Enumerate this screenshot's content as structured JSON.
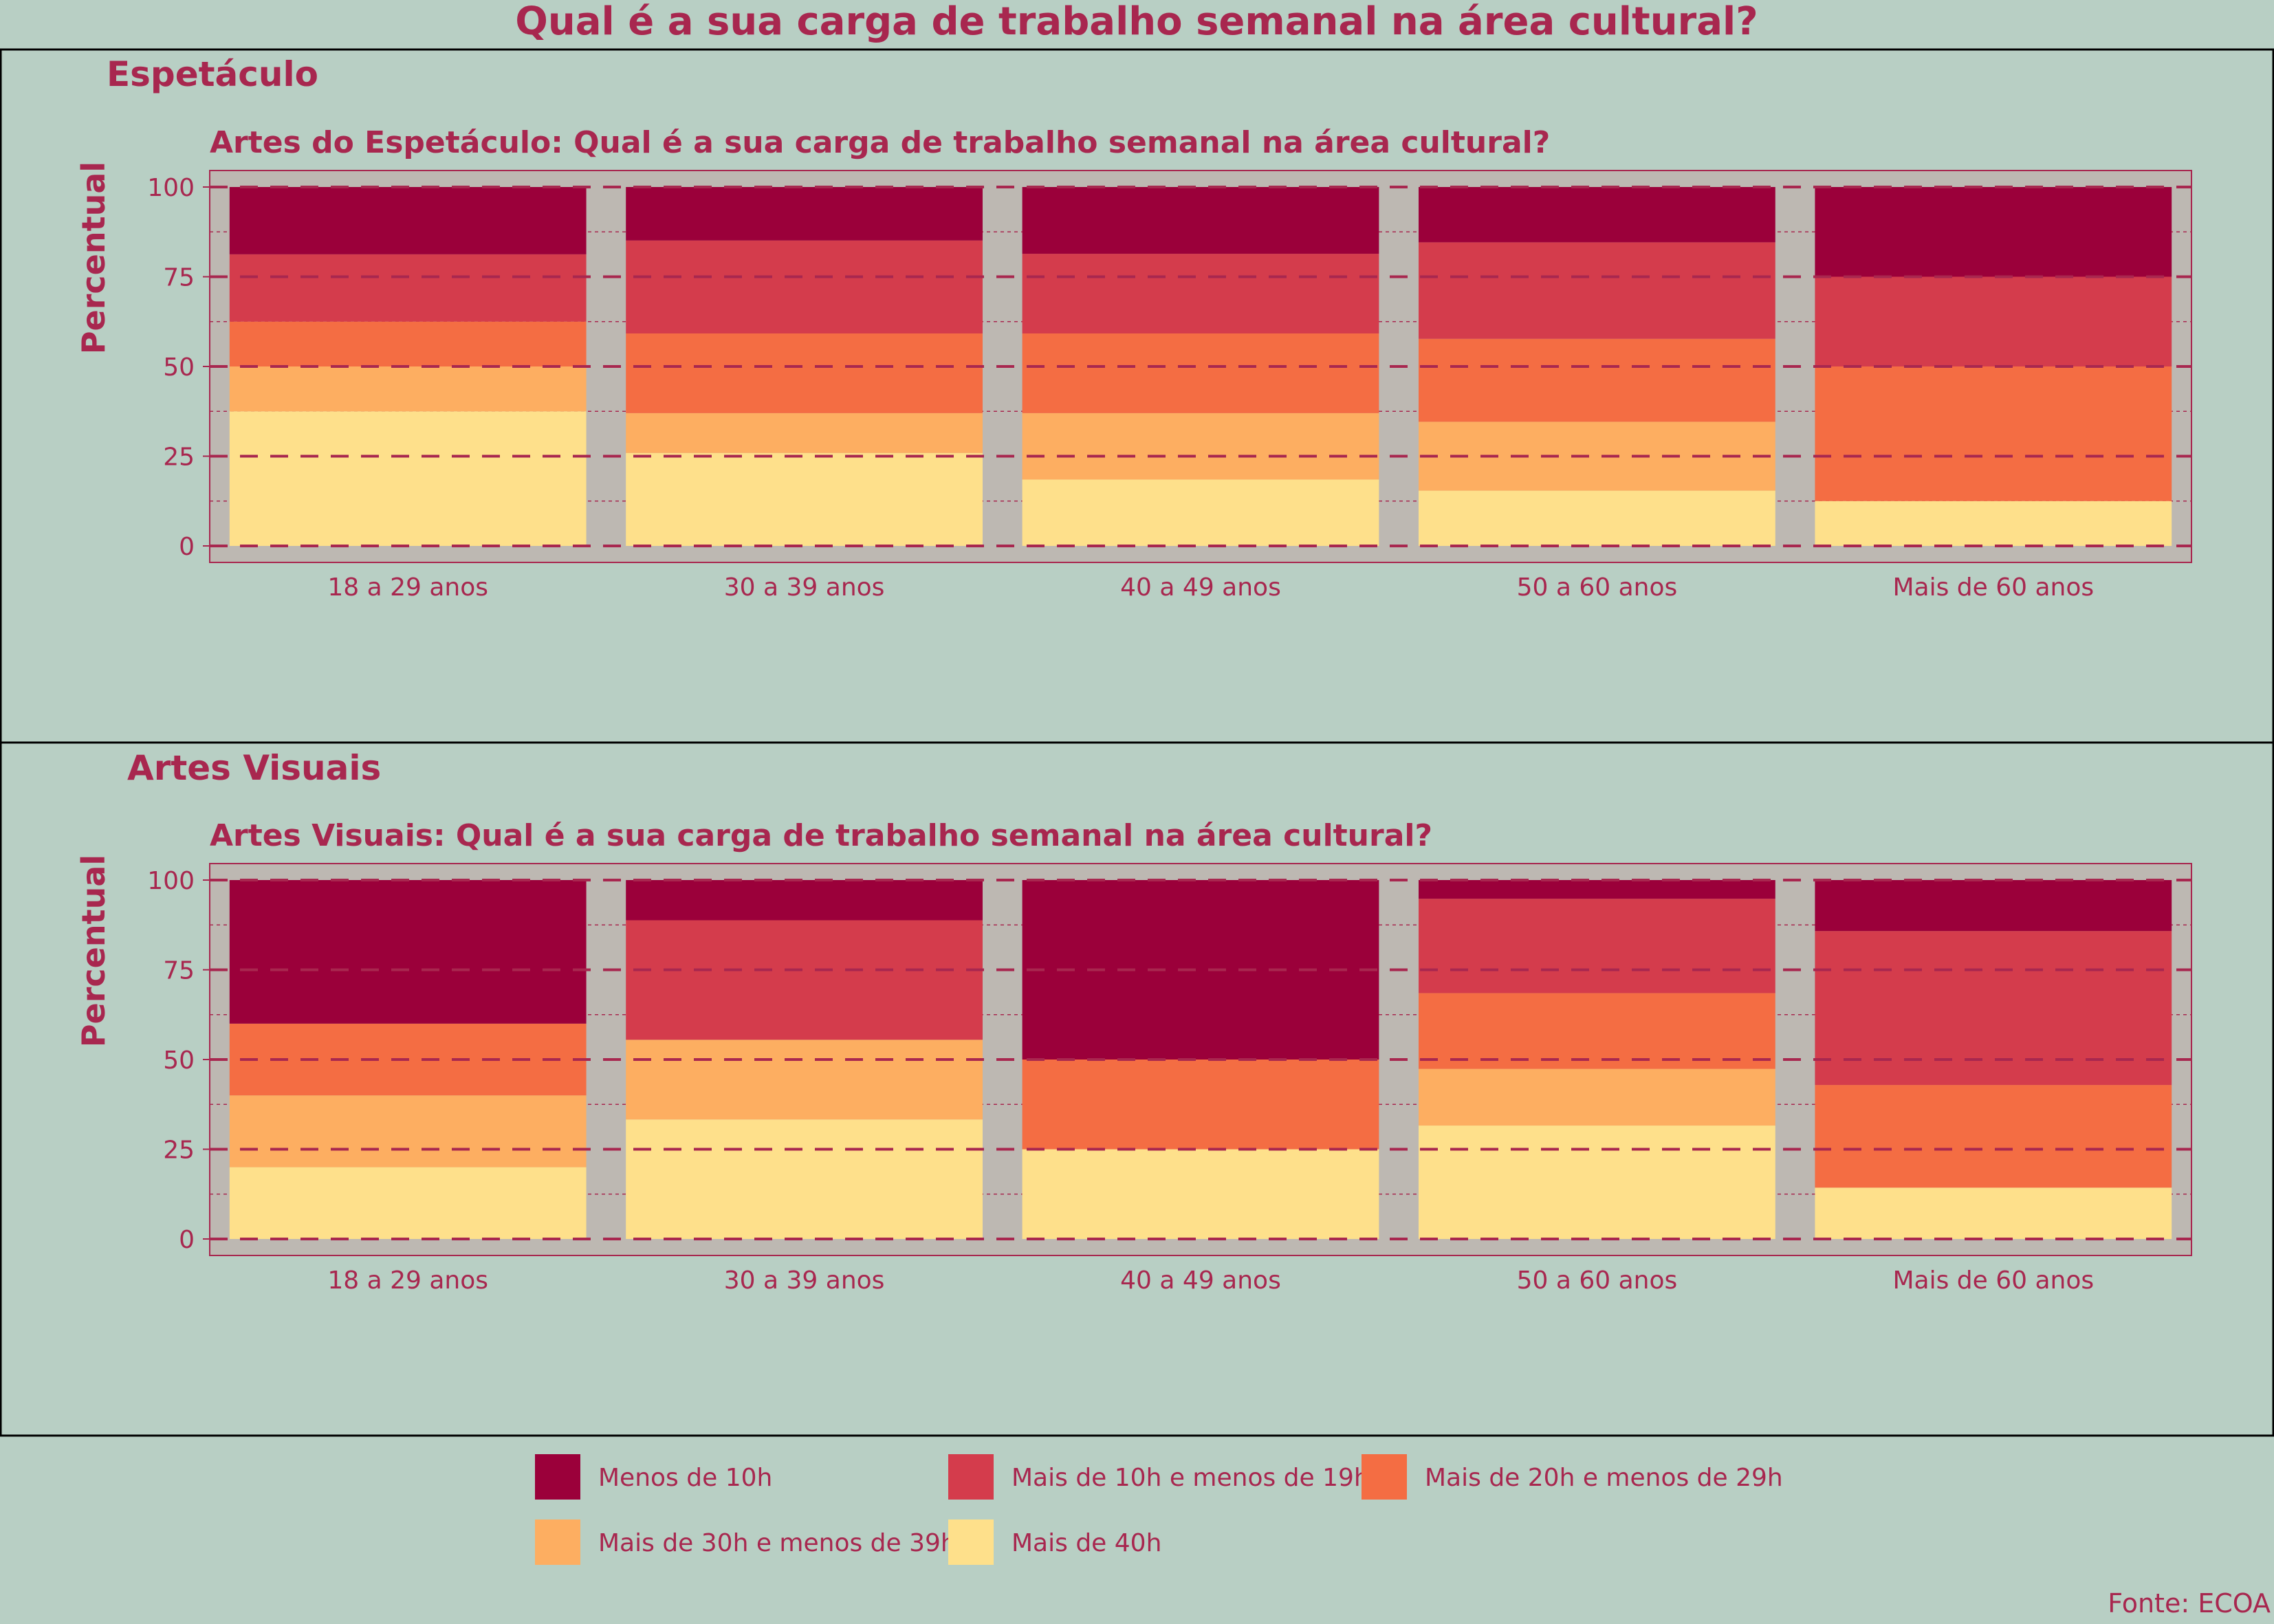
{
  "title": "Qual é a sua carga de trabalho semanal na área cultural?",
  "source": "Fonte: ECOA",
  "colors": {
    "background": "#b8cfc4",
    "panel": "#bdb8b2",
    "text": "#a8274f",
    "grid": "#a8274f",
    "frame": "#000000"
  },
  "legend": {
    "position": "bottom",
    "items": [
      {
        "label": "Menos de 10h",
        "color": "#9b003a"
      },
      {
        "label": "Mais de 10h e menos de 19h",
        "color": "#d43c4c"
      },
      {
        "label": "Mais de 20h e menos de 29h",
        "color": "#f46d43"
      },
      {
        "label": "Mais de 30h e menos de 39h",
        "color": "#fdae61"
      },
      {
        "label": "Mais de 40h",
        "color": "#fee08b"
      }
    ]
  },
  "chart_data": [
    {
      "type": "bar",
      "stacked": true,
      "facet_label": "Espetáculo",
      "title": "Artes do Espetáculo: Qual é a sua carga de trabalho semanal na área cultural?",
      "xlabel": "",
      "ylabel": "Percentual",
      "ylim": [
        0,
        100
      ],
      "yticks": [
        0,
        25,
        50,
        75,
        100
      ],
      "grid": true,
      "categories": [
        "18 a 29 anos",
        "30 a 39 anos",
        "40 a 49 anos",
        "50 a 60 anos",
        "Mais de 60 anos"
      ],
      "series": [
        {
          "name": "Mais de 40h",
          "values": [
            37.5,
            25.9,
            18.5,
            15.4,
            12.5
          ]
        },
        {
          "name": "Mais de 30h e menos de 39h",
          "values": [
            12.5,
            11.1,
            18.5,
            19.2,
            0
          ]
        },
        {
          "name": "Mais de 20h e menos de 29h",
          "values": [
            12.5,
            22.2,
            22.2,
            23.1,
            37.5
          ]
        },
        {
          "name": "Mais de 10h e menos de 19h",
          "values": [
            18.75,
            25.9,
            22.2,
            26.9,
            25.0
          ]
        },
        {
          "name": "Menos de 10h",
          "values": [
            18.75,
            14.9,
            18.6,
            15.4,
            25.0
          ]
        }
      ]
    },
    {
      "type": "bar",
      "stacked": true,
      "facet_label": "Artes Visuais",
      "title": "Artes Visuais: Qual é a sua carga de trabalho semanal na área cultural?",
      "xlabel": "",
      "ylabel": "Percentual",
      "ylim": [
        0,
        100
      ],
      "yticks": [
        0,
        25,
        50,
        75,
        100
      ],
      "grid": true,
      "categories": [
        "18 a 29 anos",
        "30 a 39 anos",
        "40 a 49 anos",
        "50 a 60 anos",
        "Mais de 60 anos"
      ],
      "series": [
        {
          "name": "Mais de 40h",
          "values": [
            20,
            33.3,
            25,
            31.6,
            14.3
          ]
        },
        {
          "name": "Mais de 30h e menos de 39h",
          "values": [
            20,
            22.2,
            0,
            15.8,
            0
          ]
        },
        {
          "name": "Mais de 20h e menos de 29h",
          "values": [
            20,
            0,
            25,
            21.1,
            28.6
          ]
        },
        {
          "name": "Mais de 10h e menos de 19h",
          "values": [
            0,
            33.3,
            0,
            26.3,
            42.9
          ]
        },
        {
          "name": "Menos de 10h",
          "values": [
            40,
            11.2,
            50,
            5.2,
            14.2
          ]
        }
      ]
    }
  ]
}
